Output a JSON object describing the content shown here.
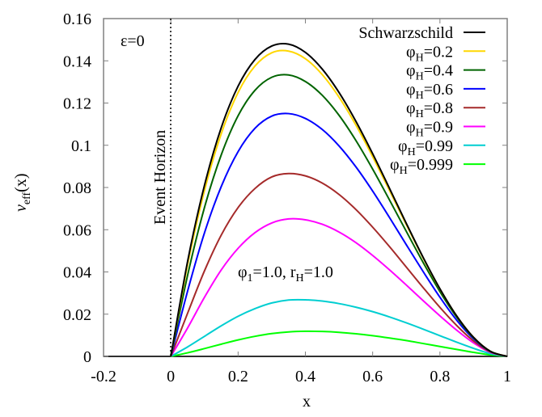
{
  "chart_data": {
    "type": "line",
    "title": "",
    "xlabel": "x",
    "ylabel": "v_eff(x)",
    "xlim": [
      -0.2,
      1.0
    ],
    "ylim": [
      0,
      0.16
    ],
    "grid": false,
    "legend_position": "top-right",
    "x_ticks": [
      "-0.2",
      "0",
      "0.2",
      "0.4",
      "0.6",
      "0.8",
      "1"
    ],
    "y_ticks": [
      "0",
      "0.02",
      "0.04",
      "0.06",
      "0.08",
      "0.1",
      "0.12",
      "0.14",
      "0.16"
    ],
    "annotations": {
      "epsilon": "ε=0",
      "event_horizon": "Event Horizon",
      "event_horizon_x": 0,
      "params": "φ1=1.0, rH=1.0"
    },
    "x": [
      0,
      0.05,
      0.1,
      0.15,
      0.2,
      0.25,
      0.3,
      0.35,
      0.4,
      0.45,
      0.5,
      0.55,
      0.6,
      0.65,
      0.7,
      0.75,
      0.8,
      0.85,
      0.9,
      0.95,
      1.0
    ],
    "series": [
      {
        "name": "Schwarzschild",
        "color": "#000000",
        "values": [
          0,
          0.0451,
          0.081,
          0.1084,
          0.128,
          0.1406,
          0.147,
          0.1479,
          0.144,
          0.1361,
          0.125,
          0.1114,
          0.096,
          0.0796,
          0.063,
          0.0469,
          0.032,
          0.0191,
          0.009,
          0.0024,
          0
        ]
      },
      {
        "name": "φH=0.2",
        "color": "#ffd700",
        "values": [
          0,
          0.0435,
          0.0785,
          0.1055,
          0.125,
          0.1375,
          0.1438,
          0.1446,
          0.141,
          0.1335,
          0.1228,
          0.1096,
          0.0946,
          0.0786,
          0.0624,
          0.0466,
          0.0319,
          0.0191,
          0.009,
          0.0024,
          0
        ]
      },
      {
        "name": "φH=0.4",
        "color": "#006400",
        "values": [
          0,
          0.0385,
          0.0705,
          0.0955,
          0.114,
          0.126,
          0.1322,
          0.1333,
          0.1302,
          0.1237,
          0.1142,
          0.1023,
          0.0887,
          0.0741,
          0.0592,
          0.0445,
          0.0307,
          0.0185,
          0.0088,
          0.0024,
          0
        ]
      },
      {
        "name": "φH=0.6",
        "color": "#0000ff",
        "values": [
          0,
          0.031,
          0.0585,
          0.0805,
          0.097,
          0.108,
          0.1138,
          0.115,
          0.1127,
          0.1075,
          0.0997,
          0.0898,
          0.0783,
          0.0658,
          0.0529,
          0.0402,
          0.028,
          0.0171,
          0.0083,
          0.0023,
          0
        ]
      },
      {
        "name": "φH=0.8",
        "color": "#a52a2a",
        "values": [
          0,
          0.0205,
          0.0405,
          0.0575,
          0.0705,
          0.0795,
          0.085,
          0.0866,
          0.0855,
          0.0821,
          0.0767,
          0.0696,
          0.0612,
          0.052,
          0.0423,
          0.0326,
          0.0232,
          0.0146,
          0.0073,
          0.0021,
          0
        ]
      },
      {
        "name": "φH=0.9",
        "color": "#ff00ff",
        "values": [
          0,
          0.0135,
          0.028,
          0.041,
          0.0512,
          0.0586,
          0.0632,
          0.0651,
          0.0647,
          0.0626,
          0.0589,
          0.0539,
          0.0478,
          0.041,
          0.0338,
          0.0264,
          0.0192,
          0.0124,
          0.0064,
          0.0019,
          0
        ]
      },
      {
        "name": "φH=0.99",
        "color": "#00ced1",
        "values": [
          0,
          0.0045,
          0.0095,
          0.0145,
          0.019,
          0.0226,
          0.0253,
          0.0267,
          0.0268,
          0.0262,
          0.025,
          0.0233,
          0.0212,
          0.0187,
          0.0159,
          0.0129,
          0.0098,
          0.0067,
          0.0038,
          0.0013,
          0
        ]
      },
      {
        "name": "φH=0.999",
        "color": "#00ff00",
        "values": [
          0,
          0.0017,
          0.0037,
          0.0058,
          0.0078,
          0.0095,
          0.0108,
          0.0116,
          0.0119,
          0.0118,
          0.0114,
          0.0107,
          0.0098,
          0.0087,
          0.0075,
          0.0061,
          0.0047,
          0.0033,
          0.0019,
          0.0007,
          0
        ]
      }
    ]
  },
  "legend": {
    "items": [
      {
        "label": "Schwarzschild",
        "sub": "",
        "rest": "",
        "color": "#000000"
      },
      {
        "label": "φ",
        "sub": "H",
        "rest": "=0.2",
        "color": "#ffd700"
      },
      {
        "label": "φ",
        "sub": "H",
        "rest": "=0.4",
        "color": "#006400"
      },
      {
        "label": "φ",
        "sub": "H",
        "rest": "=0.6",
        "color": "#0000ff"
      },
      {
        "label": "φ",
        "sub": "H",
        "rest": "=0.8",
        "color": "#a52a2a"
      },
      {
        "label": "φ",
        "sub": "H",
        "rest": "=0.9",
        "color": "#ff00ff"
      },
      {
        "label": "φ",
        "sub": "H",
        "rest": "=0.99",
        "color": "#00ced1"
      },
      {
        "label": "φ",
        "sub": "H",
        "rest": "=0.999",
        "color": "#00ff00"
      }
    ]
  },
  "labels": {
    "xlabel": "x",
    "ylabel_main": "v",
    "ylabel_sub": "eff",
    "ylabel_rest": "(x)",
    "epsilon": "ε=0",
    "event_horizon": "Event Horizon",
    "params_phi": "φ",
    "params_phi_sub": "1",
    "params_mid": "=1.0, r",
    "params_r_sub": "H",
    "params_end": "=1.0"
  }
}
